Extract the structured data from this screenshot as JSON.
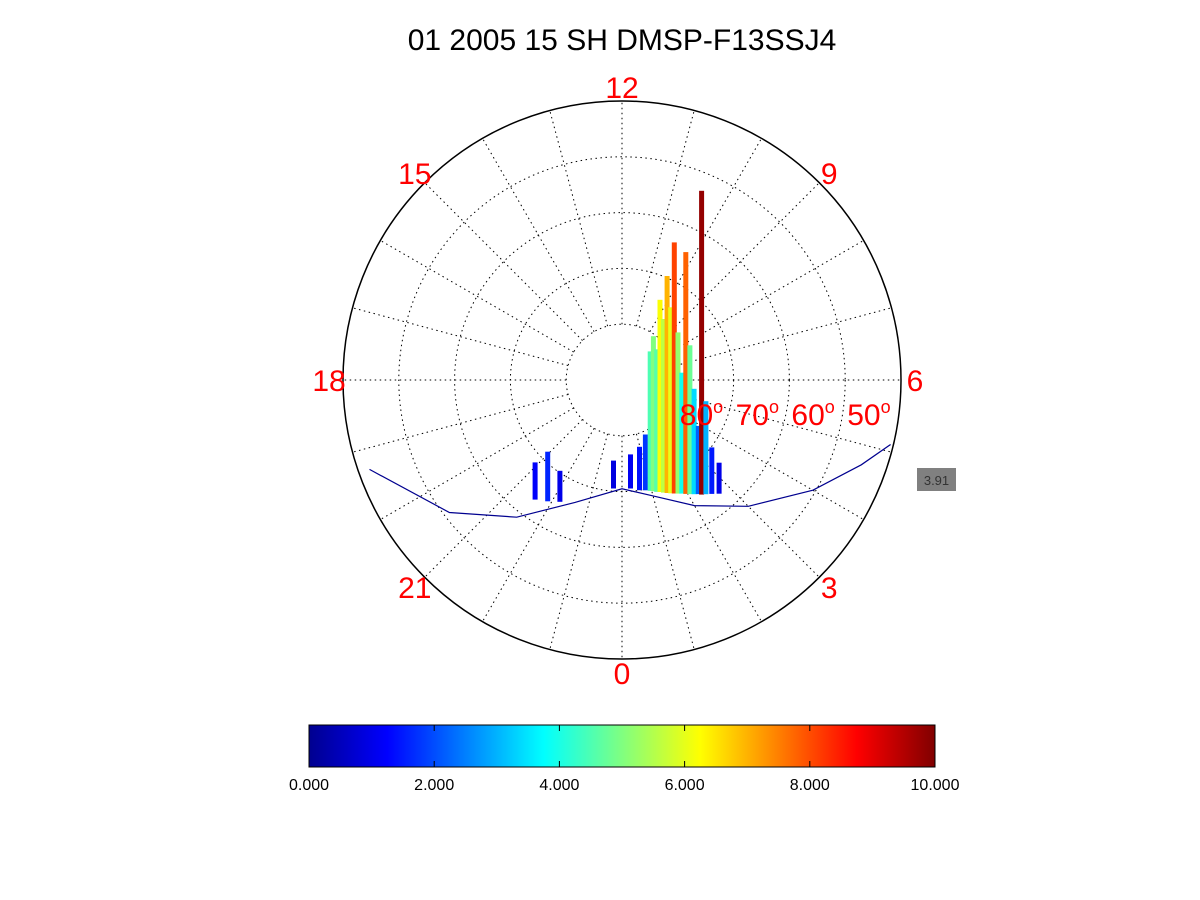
{
  "chart_data": {
    "type": "polar-bar",
    "title": "01 2005 15 SH  DMSP-F13SSJ4",
    "hour_labels": [
      "0",
      "3",
      "6",
      "9",
      "12",
      "15",
      "18",
      "21"
    ],
    "hours": [
      0,
      3,
      6,
      9,
      12,
      15,
      18,
      21
    ],
    "lat_rings": [
      80,
      70,
      60,
      50
    ],
    "lat_labels": [
      "80",
      "70",
      "60",
      "50"
    ],
    "lat_unit_sup": "o",
    "lat_range": [
      40,
      90
    ],
    "grid": true,
    "track_end_value": "3.91",
    "colorbar": {
      "min": 0,
      "max": 10,
      "tick_values": [
        0,
        2,
        4,
        6,
        8,
        10
      ],
      "tick_labels": [
        "0.000",
        "2.000",
        "4.000",
        "6.000",
        "8.000",
        "10.000"
      ],
      "colormap": "jet"
    },
    "colors": {
      "hour_label": "#ff0000",
      "track": "#00008f",
      "marker_box": "#808080"
    },
    "track": [
      {
        "mlt": 19.3,
        "lat": 42
      },
      {
        "mlt": 20.5,
        "lat": 51
      },
      {
        "mlt": 21.5,
        "lat": 59
      },
      {
        "mlt": 22.6,
        "lat": 66.5
      },
      {
        "mlt": 0.0,
        "lat": 70.5
      },
      {
        "mlt": 1.0,
        "lat": 68.5
      },
      {
        "mlt": 2.0,
        "lat": 64
      },
      {
        "mlt": 3.0,
        "lat": 58
      },
      {
        "mlt": 4.0,
        "lat": 50.5
      },
      {
        "mlt": 4.7,
        "lat": 44.5
      },
      {
        "mlt": 5.1,
        "lat": 40.5
      }
    ],
    "flux_peaks": [
      {
        "mlt": 21.6,
        "lat": 63.5,
        "value": 1.2
      },
      {
        "mlt": 21.9,
        "lat": 64.5,
        "value": 1.6
      },
      {
        "mlt": 22.2,
        "lat": 65.5,
        "value": 1.0
      },
      {
        "mlt": 23.7,
        "lat": 70.5,
        "value": 0.9
      },
      {
        "mlt": 0.3,
        "lat": 70.5,
        "value": 1.1
      },
      {
        "mlt": 0.6,
        "lat": 70.0,
        "value": 1.4
      },
      {
        "mlt": 0.8,
        "lat": 69.8,
        "value": 1.8
      },
      {
        "mlt": 0.95,
        "lat": 69.5,
        "value": 4.5
      },
      {
        "mlt": 1.05,
        "lat": 69.3,
        "value": 5.0
      },
      {
        "mlt": 1.15,
        "lat": 69.0,
        "value": 4.6
      },
      {
        "mlt": 1.25,
        "lat": 68.8,
        "value": 6.2
      },
      {
        "mlt": 1.35,
        "lat": 68.5,
        "value": 5.6
      },
      {
        "mlt": 1.45,
        "lat": 68.2,
        "value": 7.0
      },
      {
        "mlt": 1.55,
        "lat": 67.9,
        "value": 6.0
      },
      {
        "mlt": 1.65,
        "lat": 67.6,
        "value": 8.1
      },
      {
        "mlt": 1.75,
        "lat": 67.3,
        "value": 5.2
      },
      {
        "mlt": 1.85,
        "lat": 67.0,
        "value": 3.9
      },
      {
        "mlt": 1.95,
        "lat": 66.6,
        "value": 7.8
      },
      {
        "mlt": 2.05,
        "lat": 66.2,
        "value": 4.8
      },
      {
        "mlt": 2.15,
        "lat": 65.8,
        "value": 3.4
      },
      {
        "mlt": 2.25,
        "lat": 65.4,
        "value": 2.2
      },
      {
        "mlt": 2.32,
        "lat": 65.0,
        "value": 9.8
      },
      {
        "mlt": 2.42,
        "lat": 64.6,
        "value": 3.0
      },
      {
        "mlt": 2.55,
        "lat": 64.0,
        "value": 1.5
      },
      {
        "mlt": 2.7,
        "lat": 63.2,
        "value": 1.0
      }
    ]
  }
}
